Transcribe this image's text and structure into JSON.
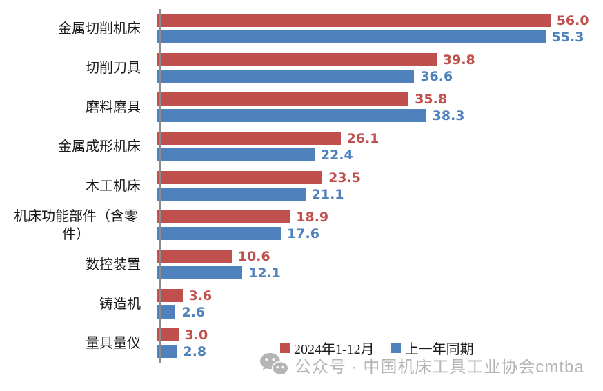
{
  "chart_data": {
    "type": "bar",
    "orientation": "horizontal",
    "categories": [
      "金属切削机床",
      "切削刀具",
      "磨料磨具",
      "金属成形机床",
      "木工机床",
      "机床功能部件（含零件）",
      "数控装置",
      "铸造机",
      "量具量仪"
    ],
    "series": [
      {
        "name": "2024年1-12月",
        "color": "#c0504d",
        "values": [
          56.0,
          39.8,
          35.8,
          26.1,
          23.5,
          18.9,
          10.6,
          3.6,
          3.0
        ]
      },
      {
        "name": "上一年同期",
        "color": "#4f81bd",
        "values": [
          55.3,
          36.6,
          38.3,
          22.4,
          21.1,
          17.6,
          12.1,
          2.6,
          2.8
        ]
      }
    ],
    "title": "",
    "xlabel": "",
    "ylabel": "",
    "xlim": [
      0,
      63.5
    ],
    "grid": false,
    "data_labels": true,
    "value_decimals": 1,
    "axis_color": "#8c8c8c",
    "legend_position": "bottom"
  },
  "watermark": {
    "icon": "wechat-icon",
    "text": "公众号 · 中国机床工具工业协会cmtba",
    "color": "#b5b5b5"
  }
}
